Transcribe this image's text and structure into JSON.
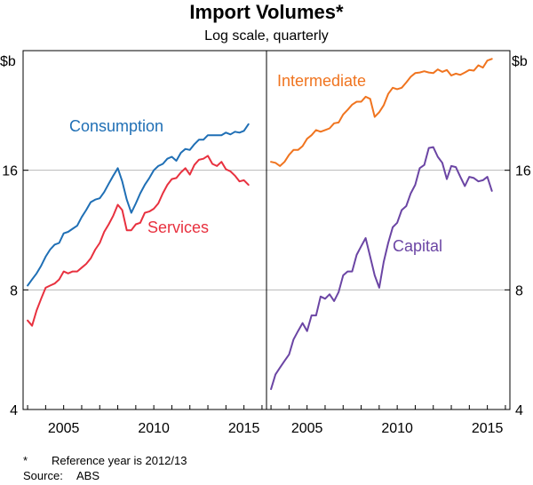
{
  "title": "Import Volumes*",
  "subtitle": "Log scale, quarterly",
  "footnotes": {
    "star_marker": "*",
    "star_text": "Reference year is 2012/13",
    "source_label": "Source:",
    "source_text": "ABS"
  },
  "colors": {
    "consumption": "#1f6fb5",
    "services": "#e8313f",
    "intermediate": "#f0741f",
    "capital": "#6b45a4",
    "grid": "#b8b8b8",
    "axis": "#000000"
  },
  "chart_data": [
    {
      "type": "line",
      "panel": "left",
      "scale": "log",
      "ylabel": "$b",
      "y_ticks": [
        4,
        8,
        16
      ],
      "y_tick_labels": [
        "4",
        "8",
        "16"
      ],
      "ylim": [
        4,
        32
      ],
      "xlim": [
        2002.75,
        2016.25
      ],
      "x_ticks": [
        2005,
        2010,
        2015
      ],
      "x_tick_labels": [
        "2005",
        "2010",
        "2015"
      ],
      "series": [
        {
          "name": "Consumption",
          "color_key": "consumption",
          "x": [
            2003.0,
            2003.25,
            2003.5,
            2003.75,
            2004.0,
            2004.25,
            2004.5,
            2004.75,
            2005.0,
            2005.25,
            2005.5,
            2005.75,
            2006.0,
            2006.25,
            2006.5,
            2006.75,
            2007.0,
            2007.25,
            2007.5,
            2007.75,
            2008.0,
            2008.25,
            2008.5,
            2008.75,
            2009.0,
            2009.25,
            2009.5,
            2009.75,
            2010.0,
            2010.25,
            2010.5,
            2010.75,
            2011.0,
            2011.25,
            2011.5,
            2011.75,
            2012.0,
            2012.25,
            2012.5,
            2012.75,
            2013.0,
            2013.25,
            2013.5,
            2013.75,
            2014.0,
            2014.25,
            2014.5,
            2014.75,
            2015.0,
            2015.25
          ],
          "values": [
            8.2,
            8.5,
            8.8,
            9.2,
            9.7,
            10.1,
            10.4,
            10.5,
            11.1,
            11.2,
            11.4,
            11.6,
            12.2,
            12.7,
            13.3,
            13.5,
            13.6,
            14.1,
            14.8,
            15.5,
            16.2,
            15.0,
            13.5,
            12.5,
            13.2,
            14.0,
            14.7,
            15.3,
            16.0,
            16.4,
            16.6,
            17.1,
            17.3,
            16.9,
            17.7,
            18.1,
            18.0,
            18.6,
            19.1,
            19.1,
            19.6,
            19.6,
            19.6,
            19.6,
            19.9,
            19.7,
            20.0,
            19.9,
            20.1,
            20.9
          ]
        },
        {
          "name": "Services",
          "color_key": "services",
          "x": [
            2003.0,
            2003.25,
            2003.5,
            2003.75,
            2004.0,
            2004.25,
            2004.5,
            2004.75,
            2005.0,
            2005.25,
            2005.5,
            2005.75,
            2006.0,
            2006.25,
            2006.5,
            2006.75,
            2007.0,
            2007.25,
            2007.5,
            2007.75,
            2008.0,
            2008.25,
            2008.5,
            2008.75,
            2009.0,
            2009.25,
            2009.5,
            2009.75,
            2010.0,
            2010.25,
            2010.5,
            2010.75,
            2011.0,
            2011.25,
            2011.5,
            2011.75,
            2012.0,
            2012.25,
            2012.5,
            2012.75,
            2013.0,
            2013.25,
            2013.5,
            2013.75,
            2014.0,
            2014.25,
            2014.5,
            2014.75,
            2015.0,
            2015.25
          ],
          "values": [
            6.7,
            6.5,
            7.1,
            7.6,
            8.1,
            8.2,
            8.3,
            8.5,
            8.9,
            8.8,
            8.9,
            8.9,
            9.1,
            9.3,
            9.6,
            10.1,
            10.5,
            11.2,
            11.7,
            12.3,
            13.1,
            12.7,
            11.3,
            11.3,
            11.7,
            11.8,
            12.5,
            12.6,
            12.8,
            13.2,
            14.0,
            14.7,
            15.2,
            15.3,
            15.8,
            16.2,
            15.6,
            16.5,
            17.0,
            17.1,
            17.4,
            16.6,
            16.4,
            16.8,
            16.1,
            15.9,
            15.5,
            15.0,
            15.1,
            14.7
          ]
        }
      ]
    },
    {
      "type": "line",
      "panel": "right",
      "scale": "log",
      "ylabel": "$b",
      "y_ticks": [
        4,
        8,
        16
      ],
      "y_tick_labels": [
        "4",
        "8",
        "16"
      ],
      "ylim": [
        4,
        32
      ],
      "xlim": [
        2002.75,
        2016.25
      ],
      "x_ticks": [
        2005,
        2010,
        2015
      ],
      "x_tick_labels": [
        "2005",
        "2010",
        "2015"
      ],
      "series": [
        {
          "name": "Intermediate",
          "color_key": "intermediate",
          "x": [
            2003.0,
            2003.25,
            2003.5,
            2003.75,
            2004.0,
            2004.25,
            2004.5,
            2004.75,
            2005.0,
            2005.25,
            2005.5,
            2005.75,
            2006.0,
            2006.25,
            2006.5,
            2006.75,
            2007.0,
            2007.25,
            2007.5,
            2007.75,
            2008.0,
            2008.25,
            2008.5,
            2008.75,
            2009.0,
            2009.25,
            2009.5,
            2009.75,
            2010.0,
            2010.25,
            2010.5,
            2010.75,
            2011.0,
            2011.25,
            2011.5,
            2011.75,
            2012.0,
            2012.25,
            2012.5,
            2012.75,
            2013.0,
            2013.25,
            2013.5,
            2013.75,
            2014.0,
            2014.25,
            2014.5,
            2014.75,
            2015.0,
            2015.25
          ],
          "values": [
            16.8,
            16.7,
            16.4,
            16.8,
            17.5,
            18.0,
            18.0,
            18.4,
            19.2,
            19.6,
            20.2,
            20.0,
            20.2,
            20.4,
            21.0,
            21.1,
            22.1,
            22.7,
            23.4,
            23.8,
            23.8,
            24.5,
            24.2,
            21.8,
            22.4,
            23.3,
            24.9,
            25.8,
            25.6,
            25.8,
            26.6,
            27.5,
            28.1,
            28.2,
            28.4,
            28.2,
            28.1,
            28.7,
            28.3,
            28.6,
            27.7,
            28.0,
            27.8,
            28.2,
            28.6,
            28.5,
            29.4,
            29.0,
            30.2,
            30.5
          ]
        },
        {
          "name": "Capital",
          "color_key": "capital",
          "x": [
            2003.0,
            2003.25,
            2003.5,
            2003.75,
            2004.0,
            2004.25,
            2004.5,
            2004.75,
            2005.0,
            2005.25,
            2005.5,
            2005.75,
            2006.0,
            2006.25,
            2006.5,
            2006.75,
            2007.0,
            2007.25,
            2007.5,
            2007.75,
            2008.0,
            2008.25,
            2008.5,
            2008.75,
            2009.0,
            2009.25,
            2009.5,
            2009.75,
            2010.0,
            2010.25,
            2010.5,
            2010.75,
            2011.0,
            2011.25,
            2011.5,
            2011.75,
            2012.0,
            2012.25,
            2012.5,
            2012.75,
            2013.0,
            2013.25,
            2013.5,
            2013.75,
            2014.0,
            2014.25,
            2014.5,
            2014.75,
            2015.0,
            2015.25
          ],
          "values": [
            4.5,
            4.9,
            5.1,
            5.3,
            5.5,
            6.0,
            6.3,
            6.6,
            6.3,
            6.9,
            6.9,
            7.7,
            7.6,
            7.8,
            7.5,
            7.9,
            8.7,
            8.9,
            8.9,
            9.8,
            10.3,
            10.8,
            9.7,
            8.7,
            8.1,
            9.4,
            10.5,
            11.5,
            11.8,
            12.7,
            13.0,
            14.0,
            14.7,
            16.2,
            16.5,
            18.2,
            18.3,
            17.3,
            16.7,
            15.2,
            16.4,
            16.3,
            15.4,
            14.6,
            15.4,
            15.3,
            15.0,
            15.1,
            15.4,
            14.2
          ]
        }
      ]
    }
  ]
}
